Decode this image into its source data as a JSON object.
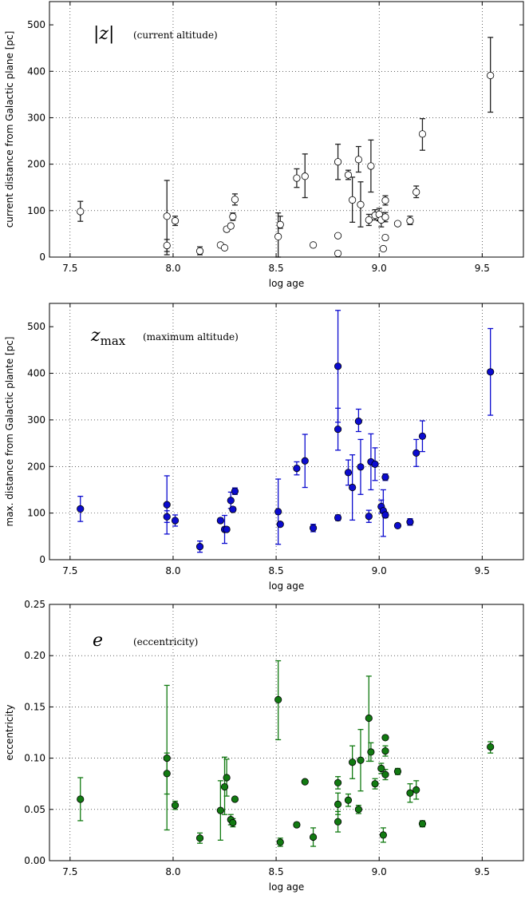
{
  "chart_data": [
    {
      "type": "scatter",
      "title": "",
      "annotation_symbol": "|z|",
      "annotation": "(current altitude)",
      "xlabel": "log age",
      "ylabel": "current distance from Galactic plane [pc]",
      "xlim": [
        7.4,
        9.7
      ],
      "ylim": [
        0,
        550
      ],
      "xticks": [
        "7.5",
        "8.0",
        "8.5",
        "9.0",
        "9.5"
      ],
      "yticks": [
        "0",
        "100",
        "200",
        "300",
        "400",
        "500"
      ],
      "grid": true,
      "marker": "open-circle",
      "color": "#222222",
      "series": [
        {
          "points": [
            {
              "x": 7.55,
              "y": 98,
              "lo": 77,
              "hi": 120
            },
            {
              "x": 7.97,
              "y": 88,
              "lo": 5,
              "hi": 165
            },
            {
              "x": 7.97,
              "y": 25,
              "lo": 12,
              "hi": 38
            },
            {
              "x": 8.01,
              "y": 78,
              "lo": 68,
              "hi": 88
            },
            {
              "x": 8.13,
              "y": 13,
              "lo": 5,
              "hi": 22
            },
            {
              "x": 8.23,
              "y": 26,
              "lo": 26,
              "hi": 26
            },
            {
              "x": 8.25,
              "y": 20,
              "lo": 20,
              "hi": 20
            },
            {
              "x": 8.26,
              "y": 60,
              "lo": 55,
              "hi": 65
            },
            {
              "x": 8.28,
              "y": 67,
              "lo": 62,
              "hi": 72
            },
            {
              "x": 8.29,
              "y": 87,
              "lo": 79,
              "hi": 95
            },
            {
              "x": 8.3,
              "y": 124,
              "lo": 112,
              "hi": 136
            },
            {
              "x": 8.51,
              "y": 44,
              "lo": 0,
              "hi": 95
            },
            {
              "x": 8.52,
              "y": 70,
              "lo": 62,
              "hi": 88
            },
            {
              "x": 8.6,
              "y": 170,
              "lo": 150,
              "hi": 190
            },
            {
              "x": 8.64,
              "y": 174,
              "lo": 128,
              "hi": 222
            },
            {
              "x": 8.68,
              "y": 26,
              "lo": 26,
              "hi": 26
            },
            {
              "x": 8.8,
              "y": 205,
              "lo": 167,
              "hi": 243
            },
            {
              "x": 8.8,
              "y": 46,
              "lo": 46,
              "hi": 46
            },
            {
              "x": 8.8,
              "y": 8,
              "lo": 8,
              "hi": 8
            },
            {
              "x": 8.85,
              "y": 177,
              "lo": 167,
              "hi": 187
            },
            {
              "x": 8.87,
              "y": 123,
              "lo": 75,
              "hi": 172
            },
            {
              "x": 8.9,
              "y": 210,
              "lo": 183,
              "hi": 238
            },
            {
              "x": 8.91,
              "y": 113,
              "lo": 65,
              "hi": 162
            },
            {
              "x": 8.95,
              "y": 80,
              "lo": 68,
              "hi": 92
            },
            {
              "x": 8.96,
              "y": 196,
              "lo": 140,
              "hi": 252
            },
            {
              "x": 8.98,
              "y": 90,
              "lo": 80,
              "hi": 102
            },
            {
              "x": 9.0,
              "y": 92,
              "lo": 78,
              "hi": 105
            },
            {
              "x": 9.01,
              "y": 80,
              "lo": 65,
              "hi": 95
            },
            {
              "x": 9.02,
              "y": 18,
              "lo": 18,
              "hi": 18
            },
            {
              "x": 9.03,
              "y": 42,
              "lo": 42,
              "hi": 42
            },
            {
              "x": 9.03,
              "y": 122,
              "lo": 112,
              "hi": 132
            },
            {
              "x": 9.03,
              "y": 86,
              "lo": 76,
              "hi": 96
            },
            {
              "x": 9.09,
              "y": 72,
              "lo": 72,
              "hi": 72
            },
            {
              "x": 9.15,
              "y": 78,
              "lo": 70,
              "hi": 88
            },
            {
              "x": 9.18,
              "y": 140,
              "lo": 128,
              "hi": 153
            },
            {
              "x": 9.21,
              "y": 265,
              "lo": 230,
              "hi": 298
            },
            {
              "x": 9.54,
              "y": 391,
              "lo": 312,
              "hi": 473
            }
          ]
        }
      ]
    },
    {
      "type": "scatter",
      "title": "",
      "annotation_symbol": "z_max",
      "annotation": "(maximum altitude)",
      "xlabel": "log age",
      "ylabel": "max. distance from Galactic plante [pc]",
      "xlim": [
        7.4,
        9.7
      ],
      "ylim": [
        0,
        550
      ],
      "xticks": [
        "7.5",
        "8.0",
        "8.5",
        "9.0",
        "9.5"
      ],
      "yticks": [
        "0",
        "100",
        "200",
        "300",
        "400",
        "500"
      ],
      "grid": true,
      "marker": "filled-circle",
      "color": "#0b0bcf",
      "series": [
        {
          "points": [
            {
              "x": 7.55,
              "y": 109,
              "lo": 82,
              "hi": 136
            },
            {
              "x": 7.97,
              "y": 118,
              "lo": 55,
              "hi": 180
            },
            {
              "x": 7.97,
              "y": 92,
              "lo": 80,
              "hi": 105
            },
            {
              "x": 8.01,
              "y": 84,
              "lo": 72,
              "hi": 96
            },
            {
              "x": 8.13,
              "y": 28,
              "lo": 16,
              "hi": 40
            },
            {
              "x": 8.23,
              "y": 84,
              "lo": 79,
              "hi": 89
            },
            {
              "x": 8.25,
              "y": 65,
              "lo": 35,
              "hi": 95
            },
            {
              "x": 8.26,
              "y": 65,
              "lo": 62,
              "hi": 68
            },
            {
              "x": 8.28,
              "y": 127,
              "lo": 110,
              "hi": 145
            },
            {
              "x": 8.29,
              "y": 108,
              "lo": 103,
              "hi": 113
            },
            {
              "x": 8.3,
              "y": 147,
              "lo": 140,
              "hi": 154
            },
            {
              "x": 8.51,
              "y": 103,
              "lo": 33,
              "hi": 173
            },
            {
              "x": 8.52,
              "y": 76,
              "lo": 76,
              "hi": 76
            },
            {
              "x": 8.6,
              "y": 196,
              "lo": 182,
              "hi": 210
            },
            {
              "x": 8.64,
              "y": 212,
              "lo": 155,
              "hi": 269
            },
            {
              "x": 8.68,
              "y": 68,
              "lo": 60,
              "hi": 76
            },
            {
              "x": 8.8,
              "y": 415,
              "lo": 295,
              "hi": 535
            },
            {
              "x": 8.8,
              "y": 280,
              "lo": 235,
              "hi": 325
            },
            {
              "x": 8.8,
              "y": 90,
              "lo": 84,
              "hi": 96
            },
            {
              "x": 8.85,
              "y": 187,
              "lo": 160,
              "hi": 214
            },
            {
              "x": 8.87,
              "y": 155,
              "lo": 85,
              "hi": 225
            },
            {
              "x": 8.9,
              "y": 297,
              "lo": 275,
              "hi": 323
            },
            {
              "x": 8.91,
              "y": 199,
              "lo": 140,
              "hi": 258
            },
            {
              "x": 8.95,
              "y": 93,
              "lo": 80,
              "hi": 106
            },
            {
              "x": 8.96,
              "y": 210,
              "lo": 150,
              "hi": 270
            },
            {
              "x": 8.98,
              "y": 205,
              "lo": 170,
              "hi": 240
            },
            {
              "x": 9.01,
              "y": 114,
              "lo": 100,
              "hi": 128
            },
            {
              "x": 9.02,
              "y": 105,
              "lo": 50,
              "hi": 150
            },
            {
              "x": 9.03,
              "y": 96,
              "lo": 90,
              "hi": 102
            },
            {
              "x": 9.03,
              "y": 177,
              "lo": 170,
              "hi": 184
            },
            {
              "x": 9.09,
              "y": 73,
              "lo": 73,
              "hi": 73
            },
            {
              "x": 9.15,
              "y": 81,
              "lo": 74,
              "hi": 88
            },
            {
              "x": 9.18,
              "y": 229,
              "lo": 200,
              "hi": 258
            },
            {
              "x": 9.21,
              "y": 265,
              "lo": 232,
              "hi": 298
            },
            {
              "x": 9.54,
              "y": 403,
              "lo": 310,
              "hi": 496
            }
          ]
        }
      ]
    },
    {
      "type": "scatter",
      "title": "",
      "annotation_symbol": "e",
      "annotation": "(eccentricity)",
      "xlabel": "log age",
      "ylabel": "eccentricity",
      "xlim": [
        7.4,
        9.7
      ],
      "ylim": [
        0,
        0.25
      ],
      "xticks": [
        "7.5",
        "8.0",
        "8.5",
        "9.0",
        "9.5"
      ],
      "yticks": [
        "0.00",
        "0.05",
        "0.10",
        "0.15",
        "0.20",
        "0.25"
      ],
      "grid": true,
      "marker": "filled-circle",
      "color": "#117a11",
      "series": [
        {
          "points": [
            {
              "x": 7.55,
              "y": 0.06,
              "lo": 0.039,
              "hi": 0.081
            },
            {
              "x": 7.97,
              "y": 0.1,
              "lo": 0.03,
              "hi": 0.171
            },
            {
              "x": 7.97,
              "y": 0.085,
              "lo": 0.065,
              "hi": 0.105
            },
            {
              "x": 8.01,
              "y": 0.054,
              "lo": 0.05,
              "hi": 0.058
            },
            {
              "x": 8.13,
              "y": 0.022,
              "lo": 0.017,
              "hi": 0.027
            },
            {
              "x": 8.23,
              "y": 0.049,
              "lo": 0.02,
              "hi": 0.078
            },
            {
              "x": 8.25,
              "y": 0.072,
              "lo": 0.045,
              "hi": 0.101
            },
            {
              "x": 8.26,
              "y": 0.081,
              "lo": 0.063,
              "hi": 0.099
            },
            {
              "x": 8.28,
              "y": 0.04,
              "lo": 0.035,
              "hi": 0.045
            },
            {
              "x": 8.29,
              "y": 0.037,
              "lo": 0.033,
              "hi": 0.041
            },
            {
              "x": 8.3,
              "y": 0.06,
              "lo": 0.06,
              "hi": 0.06
            },
            {
              "x": 8.51,
              "y": 0.157,
              "lo": 0.118,
              "hi": 0.195
            },
            {
              "x": 8.52,
              "y": 0.018,
              "lo": 0.014,
              "hi": 0.022
            },
            {
              "x": 8.6,
              "y": 0.035,
              "lo": 0.033,
              "hi": 0.037
            },
            {
              "x": 8.64,
              "y": 0.077,
              "lo": 0.077,
              "hi": 0.077
            },
            {
              "x": 8.68,
              "y": 0.023,
              "lo": 0.014,
              "hi": 0.032
            },
            {
              "x": 8.8,
              "y": 0.076,
              "lo": 0.07,
              "hi": 0.082
            },
            {
              "x": 8.8,
              "y": 0.055,
              "lo": 0.045,
              "hi": 0.066
            },
            {
              "x": 8.8,
              "y": 0.038,
              "lo": 0.028,
              "hi": 0.048
            },
            {
              "x": 8.85,
              "y": 0.059,
              "lo": 0.053,
              "hi": 0.065
            },
            {
              "x": 8.87,
              "y": 0.096,
              "lo": 0.08,
              "hi": 0.112
            },
            {
              "x": 8.9,
              "y": 0.05,
              "lo": 0.046,
              "hi": 0.054
            },
            {
              "x": 8.91,
              "y": 0.098,
              "lo": 0.068,
              "hi": 0.128
            },
            {
              "x": 8.95,
              "y": 0.139,
              "lo": 0.097,
              "hi": 0.18
            },
            {
              "x": 8.96,
              "y": 0.106,
              "lo": 0.097,
              "hi": 0.115
            },
            {
              "x": 8.98,
              "y": 0.075,
              "lo": 0.07,
              "hi": 0.08
            },
            {
              "x": 9.01,
              "y": 0.09,
              "lo": 0.085,
              "hi": 0.095
            },
            {
              "x": 9.02,
              "y": 0.025,
              "lo": 0.018,
              "hi": 0.032
            },
            {
              "x": 9.03,
              "y": 0.084,
              "lo": 0.079,
              "hi": 0.089
            },
            {
              "x": 9.03,
              "y": 0.107,
              "lo": 0.102,
              "hi": 0.112
            },
            {
              "x": 9.03,
              "y": 0.12,
              "lo": 0.12,
              "hi": 0.12
            },
            {
              "x": 9.09,
              "y": 0.087,
              "lo": 0.084,
              "hi": 0.09
            },
            {
              "x": 9.15,
              "y": 0.066,
              "lo": 0.057,
              "hi": 0.075
            },
            {
              "x": 9.18,
              "y": 0.069,
              "lo": 0.06,
              "hi": 0.078
            },
            {
              "x": 9.21,
              "y": 0.036,
              "lo": 0.033,
              "hi": 0.039
            },
            {
              "x": 9.54,
              "y": 0.111,
              "lo": 0.105,
              "hi": 0.116
            }
          ]
        }
      ]
    }
  ]
}
